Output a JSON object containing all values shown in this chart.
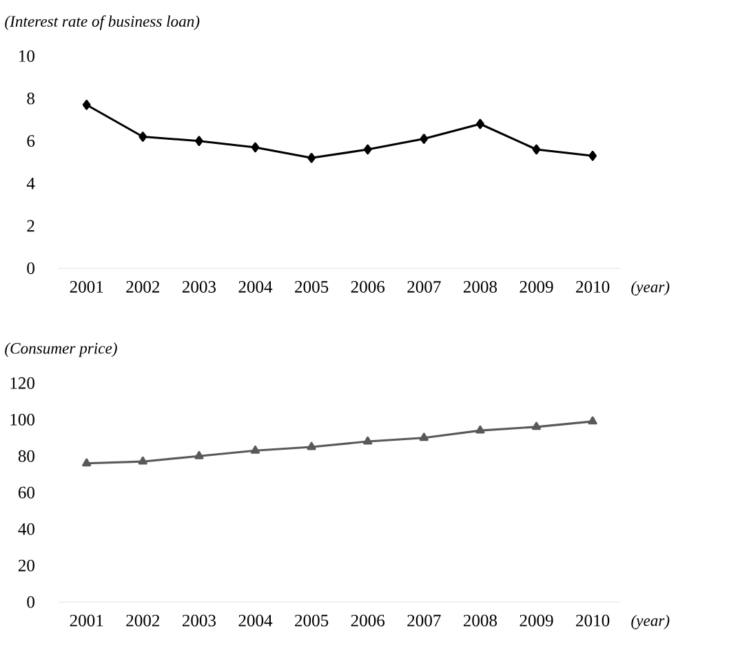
{
  "chart_data": [
    {
      "type": "line",
      "ylabel": "(Interest rate of business loan)",
      "xlabel": "(year)",
      "categories": [
        "2001",
        "2002",
        "2003",
        "2004",
        "2005",
        "2006",
        "2007",
        "2008",
        "2009",
        "2010"
      ],
      "marker": "diamond",
      "series": [
        {
          "color": "#000000",
          "values": [
            7.7,
            6.2,
            6.0,
            5.7,
            5.2,
            5.6,
            6.1,
            6.8,
            5.6,
            5.3
          ]
        }
      ],
      "ylim": [
        0,
        10
      ],
      "yticks": [
        0,
        2,
        4,
        6,
        8,
        10
      ]
    },
    {
      "type": "line",
      "ylabel": "(Consumer price)",
      "xlabel": "(year)",
      "categories": [
        "2001",
        "2002",
        "2003",
        "2004",
        "2005",
        "2006",
        "2007",
        "2008",
        "2009",
        "2010"
      ],
      "marker": "triangle",
      "series": [
        {
          "color": "#595959",
          "values": [
            76,
            77,
            80,
            83,
            85,
            88,
            90,
            94,
            96,
            99
          ]
        }
      ],
      "ylim": [
        0,
        120
      ],
      "yticks": [
        0,
        20,
        40,
        60,
        80,
        100,
        120
      ]
    }
  ]
}
